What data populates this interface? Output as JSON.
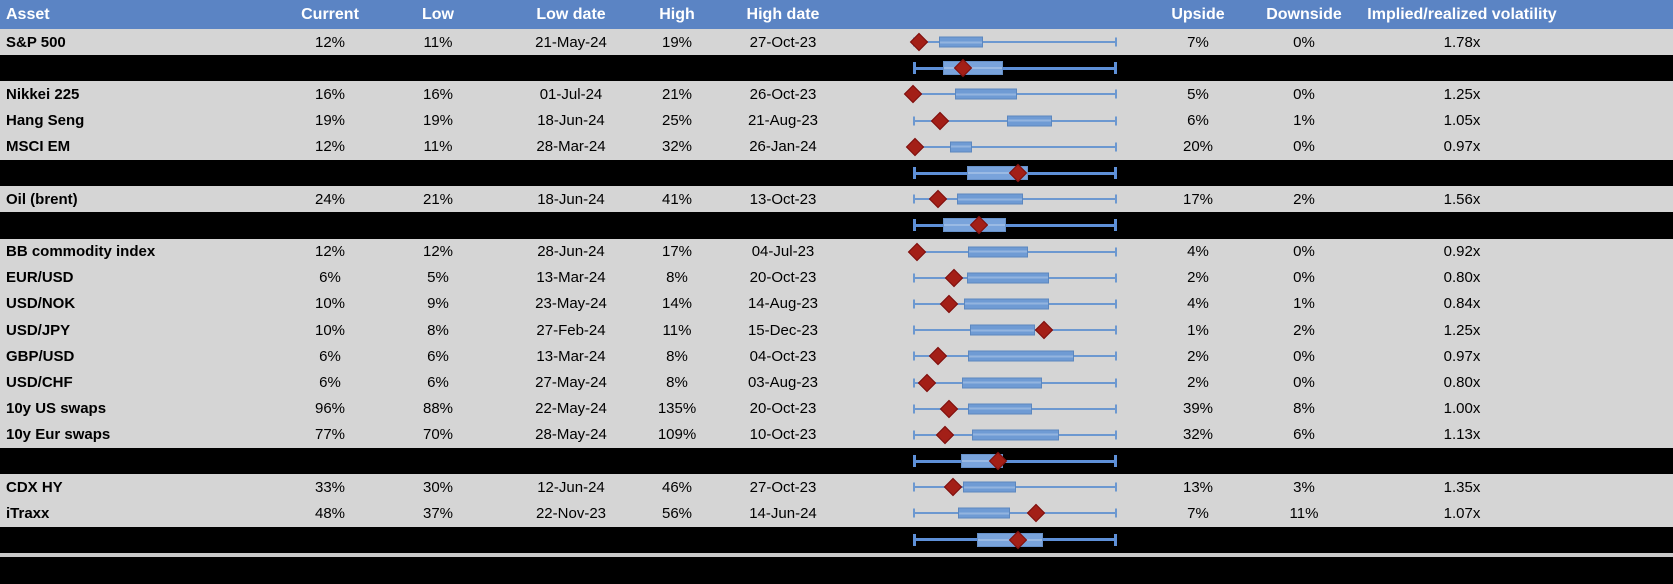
{
  "colors": {
    "header_bg": "#5B84C4",
    "header_text": "#FFFFFF",
    "row_bg": "#D5D5D5",
    "separator_bg": "#000000",
    "box_fill": "#6F9BD4",
    "whisker": "#6C98D0",
    "marker": "#A31F17"
  },
  "chart_data": {
    "type": "table",
    "title": "",
    "legend_position": "none",
    "notes": "Each row embeds a horizontal box plot spanning a common low-high range (whiskers at 0% and 100% of the cell plot area); red diamond marks a level within that range.",
    "columns": [
      "Asset",
      "Current",
      "Low",
      "Low date",
      "High",
      "High date",
      "",
      "Upside",
      "Downside",
      "Implied/realized volatility"
    ],
    "rows": [
      {
        "type": "asset",
        "asset": "S&P 500",
        "current": "12%",
        "low": "11%",
        "low_date": "21-May-24",
        "high": "19%",
        "high_date": "27-Oct-23",
        "upside": "7%",
        "downside": "0%",
        "implied": "1.78x",
        "plot": {
          "box_left_pct": 12.7,
          "box_right_pct": 34.3,
          "diamond_pct": 2.9
        }
      },
      {
        "type": "summary",
        "plot": {
          "box_left_pct": 14.7,
          "box_right_pct": 44.1,
          "diamond_pct": 24.5
        }
      },
      {
        "type": "asset",
        "asset": "Nikkei 225",
        "current": "16%",
        "low": "16%",
        "low_date": "01-Jul-24",
        "high": "21%",
        "high_date": "26-Oct-23",
        "upside": "5%",
        "downside": "0%",
        "implied": "1.25x",
        "plot": {
          "box_left_pct": 20.6,
          "box_right_pct": 51.0,
          "diamond_pct": 0.0
        }
      },
      {
        "type": "asset",
        "asset": "Hang Seng",
        "current": "19%",
        "low": "19%",
        "low_date": "18-Jun-24",
        "high": "25%",
        "high_date": "21-Aug-23",
        "upside": "6%",
        "downside": "1%",
        "implied": "1.05x",
        "plot": {
          "box_left_pct": 46.1,
          "box_right_pct": 68.1,
          "diamond_pct": 13.2
        }
      },
      {
        "type": "asset",
        "asset": "MSCI EM",
        "current": "12%",
        "low": "11%",
        "low_date": "28-Mar-24",
        "high": "32%",
        "high_date": "26-Jan-24",
        "upside": "20%",
        "downside": "0%",
        "implied": "0.97x",
        "plot": {
          "box_left_pct": 18.1,
          "box_right_pct": 28.9,
          "diamond_pct": 1.0
        }
      },
      {
        "type": "summary",
        "plot": {
          "box_left_pct": 26.5,
          "box_right_pct": 56.4,
          "diamond_pct": 51.5
        }
      },
      {
        "type": "asset",
        "asset": "Oil (brent)",
        "current": "24%",
        "low": "21%",
        "low_date": "18-Jun-24",
        "high": "41%",
        "high_date": "13-Oct-23",
        "upside": "17%",
        "downside": "2%",
        "implied": "1.56x",
        "plot": {
          "box_left_pct": 21.6,
          "box_right_pct": 53.9,
          "diamond_pct": 12.3
        }
      },
      {
        "type": "summary",
        "plot": {
          "box_left_pct": 14.7,
          "box_right_pct": 45.6,
          "diamond_pct": 32.4
        }
      },
      {
        "type": "asset",
        "asset": "BB commodity index",
        "current": "12%",
        "low": "12%",
        "low_date": "28-Jun-24",
        "high": "17%",
        "high_date": "04-Jul-23",
        "upside": "4%",
        "downside": "0%",
        "implied": "0.92x",
        "plot": {
          "box_left_pct": 27.0,
          "box_right_pct": 56.4,
          "diamond_pct": 2.0
        }
      },
      {
        "type": "asset",
        "asset": "EUR/USD",
        "current": "6%",
        "low": "5%",
        "low_date": "13-Mar-24",
        "high": "8%",
        "high_date": "20-Oct-23",
        "upside": "2%",
        "downside": "0%",
        "implied": "0.80x",
        "plot": {
          "box_left_pct": 26.5,
          "box_right_pct": 66.7,
          "diamond_pct": 20.1
        }
      },
      {
        "type": "asset",
        "asset": "USD/NOK",
        "current": "10%",
        "low": "9%",
        "low_date": "23-May-24",
        "high": "14%",
        "high_date": "14-Aug-23",
        "upside": "4%",
        "downside": "1%",
        "implied": "0.84x",
        "plot": {
          "box_left_pct": 25.0,
          "box_right_pct": 66.7,
          "diamond_pct": 17.6
        }
      },
      {
        "type": "asset",
        "asset": "USD/JPY",
        "current": "10%",
        "low": "8%",
        "low_date": "27-Feb-24",
        "high": "11%",
        "high_date": "15-Dec-23",
        "upside": "1%",
        "downside": "2%",
        "implied": "1.25x",
        "plot": {
          "box_left_pct": 27.9,
          "box_right_pct": 59.8,
          "diamond_pct": 64.2
        }
      },
      {
        "type": "asset",
        "asset": "GBP/USD",
        "current": "6%",
        "low": "6%",
        "low_date": "13-Mar-24",
        "high": "8%",
        "high_date": "04-Oct-23",
        "upside": "2%",
        "downside": "0%",
        "implied": "0.97x",
        "plot": {
          "box_left_pct": 27.0,
          "box_right_pct": 78.9,
          "diamond_pct": 12.3
        }
      },
      {
        "type": "asset",
        "asset": "USD/CHF",
        "current": "6%",
        "low": "6%",
        "low_date": "27-May-24",
        "high": "8%",
        "high_date": "03-Aug-23",
        "upside": "2%",
        "downside": "0%",
        "implied": "0.80x",
        "plot": {
          "box_left_pct": 24.0,
          "box_right_pct": 63.2,
          "diamond_pct": 6.9
        }
      },
      {
        "type": "asset",
        "asset": "10y US swaps",
        "current": "96%",
        "low": "88%",
        "low_date": "22-May-24",
        "high": "135%",
        "high_date": "20-Oct-23",
        "upside": "39%",
        "downside": "8%",
        "implied": "1.00x",
        "plot": {
          "box_left_pct": 27.0,
          "box_right_pct": 58.3,
          "diamond_pct": 17.6
        }
      },
      {
        "type": "asset",
        "asset": "10y Eur swaps",
        "current": "77%",
        "low": "70%",
        "low_date": "28-May-24",
        "high": "109%",
        "high_date": "10-Oct-23",
        "upside": "32%",
        "downside": "6%",
        "implied": "1.13x",
        "plot": {
          "box_left_pct": 28.9,
          "box_right_pct": 71.6,
          "diamond_pct": 15.7
        }
      },
      {
        "type": "summary",
        "plot": {
          "box_left_pct": 23.5,
          "box_right_pct": 44.1,
          "diamond_pct": 41.7
        }
      },
      {
        "type": "asset",
        "asset": "CDX HY",
        "current": "33%",
        "low": "30%",
        "low_date": "12-Jun-24",
        "high": "46%",
        "high_date": "27-Oct-23",
        "upside": "13%",
        "downside": "3%",
        "implied": "1.35x",
        "plot": {
          "box_left_pct": 24.5,
          "box_right_pct": 50.5,
          "diamond_pct": 19.6
        }
      },
      {
        "type": "asset",
        "asset": "iTraxx",
        "current": "48%",
        "low": "37%",
        "low_date": "22-Nov-23",
        "high": "56%",
        "high_date": "14-Jun-24",
        "upside": "7%",
        "downside": "11%",
        "implied": "1.07x",
        "plot": {
          "box_left_pct": 22.1,
          "box_right_pct": 47.5,
          "diamond_pct": 60.3
        }
      },
      {
        "type": "summary",
        "plot": {
          "box_left_pct": 31.4,
          "box_right_pct": 63.7,
          "diamond_pct": 51.5
        }
      }
    ]
  }
}
